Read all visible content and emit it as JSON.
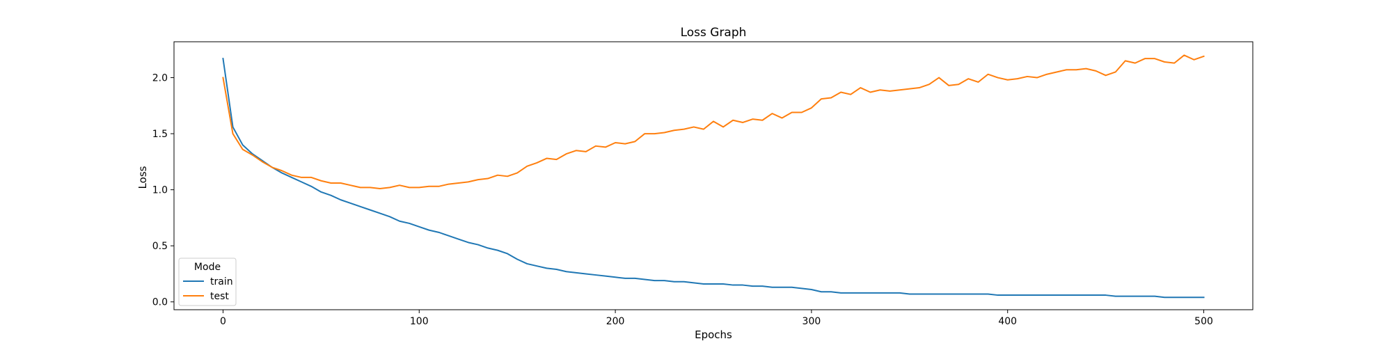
{
  "chart_data": {
    "type": "line",
    "title": "Loss Graph",
    "xlabel": "Epochs",
    "ylabel": "Loss",
    "xlim": [
      -25,
      525
    ],
    "ylim": [
      -0.07,
      2.32
    ],
    "xticks": [
      0,
      100,
      200,
      300,
      400,
      500
    ],
    "yticks": [
      0.0,
      0.5,
      1.0,
      1.5,
      2.0
    ],
    "grid": false,
    "legend": {
      "title": "Mode",
      "placement": "lower-left"
    },
    "x": [
      0,
      5,
      10,
      15,
      20,
      25,
      30,
      35,
      40,
      45,
      50,
      55,
      60,
      65,
      70,
      75,
      80,
      85,
      90,
      95,
      100,
      105,
      110,
      115,
      120,
      125,
      130,
      135,
      140,
      145,
      150,
      155,
      160,
      165,
      170,
      175,
      180,
      185,
      190,
      195,
      200,
      205,
      210,
      215,
      220,
      225,
      230,
      235,
      240,
      245,
      250,
      255,
      260,
      265,
      270,
      275,
      280,
      285,
      290,
      295,
      300,
      305,
      310,
      315,
      320,
      325,
      330,
      335,
      340,
      345,
      350,
      355,
      360,
      365,
      370,
      375,
      380,
      385,
      390,
      395,
      400,
      405,
      410,
      415,
      420,
      425,
      430,
      435,
      440,
      445,
      450,
      455,
      460,
      465,
      470,
      475,
      480,
      485,
      490,
      495,
      500
    ],
    "series": [
      {
        "name": "train",
        "color": "#1f77b4",
        "values": [
          2.17,
          1.56,
          1.4,
          1.32,
          1.26,
          1.2,
          1.15,
          1.11,
          1.07,
          1.03,
          0.98,
          0.95,
          0.91,
          0.88,
          0.85,
          0.82,
          0.79,
          0.76,
          0.72,
          0.7,
          0.67,
          0.64,
          0.62,
          0.59,
          0.56,
          0.53,
          0.51,
          0.48,
          0.46,
          0.43,
          0.38,
          0.34,
          0.32,
          0.3,
          0.29,
          0.27,
          0.26,
          0.25,
          0.24,
          0.23,
          0.22,
          0.21,
          0.21,
          0.2,
          0.19,
          0.19,
          0.18,
          0.18,
          0.17,
          0.16,
          0.16,
          0.16,
          0.15,
          0.15,
          0.14,
          0.14,
          0.13,
          0.13,
          0.13,
          0.12,
          0.11,
          0.09,
          0.09,
          0.08,
          0.08,
          0.08,
          0.08,
          0.08,
          0.08,
          0.08,
          0.07,
          0.07,
          0.07,
          0.07,
          0.07,
          0.07,
          0.07,
          0.07,
          0.07,
          0.06,
          0.06,
          0.06,
          0.06,
          0.06,
          0.06,
          0.06,
          0.06,
          0.06,
          0.06,
          0.06,
          0.06,
          0.05,
          0.05,
          0.05,
          0.05,
          0.05,
          0.04,
          0.04,
          0.04,
          0.04,
          0.04
        ]
      },
      {
        "name": "test",
        "color": "#ff7f0e",
        "values": [
          2.0,
          1.5,
          1.36,
          1.31,
          1.25,
          1.2,
          1.17,
          1.13,
          1.11,
          1.11,
          1.08,
          1.06,
          1.06,
          1.04,
          1.02,
          1.02,
          1.01,
          1.02,
          1.04,
          1.02,
          1.02,
          1.03,
          1.03,
          1.05,
          1.06,
          1.07,
          1.09,
          1.1,
          1.13,
          1.12,
          1.15,
          1.21,
          1.24,
          1.28,
          1.27,
          1.32,
          1.35,
          1.34,
          1.39,
          1.38,
          1.42,
          1.41,
          1.43,
          1.5,
          1.5,
          1.51,
          1.53,
          1.54,
          1.56,
          1.54,
          1.61,
          1.56,
          1.62,
          1.6,
          1.63,
          1.62,
          1.68,
          1.64,
          1.69,
          1.69,
          1.73,
          1.81,
          1.82,
          1.87,
          1.85,
          1.91,
          1.87,
          1.89,
          1.88,
          1.89,
          1.9,
          1.91,
          1.94,
          2.0,
          1.93,
          1.94,
          1.99,
          1.96,
          2.03,
          2.0,
          1.98,
          1.99,
          2.01,
          2.0,
          2.03,
          2.05,
          2.07,
          2.07,
          2.08,
          2.06,
          2.02,
          2.05,
          2.15,
          2.13,
          2.17,
          2.17,
          2.14,
          2.13,
          2.2,
          2.16,
          2.19
        ]
      }
    ]
  }
}
